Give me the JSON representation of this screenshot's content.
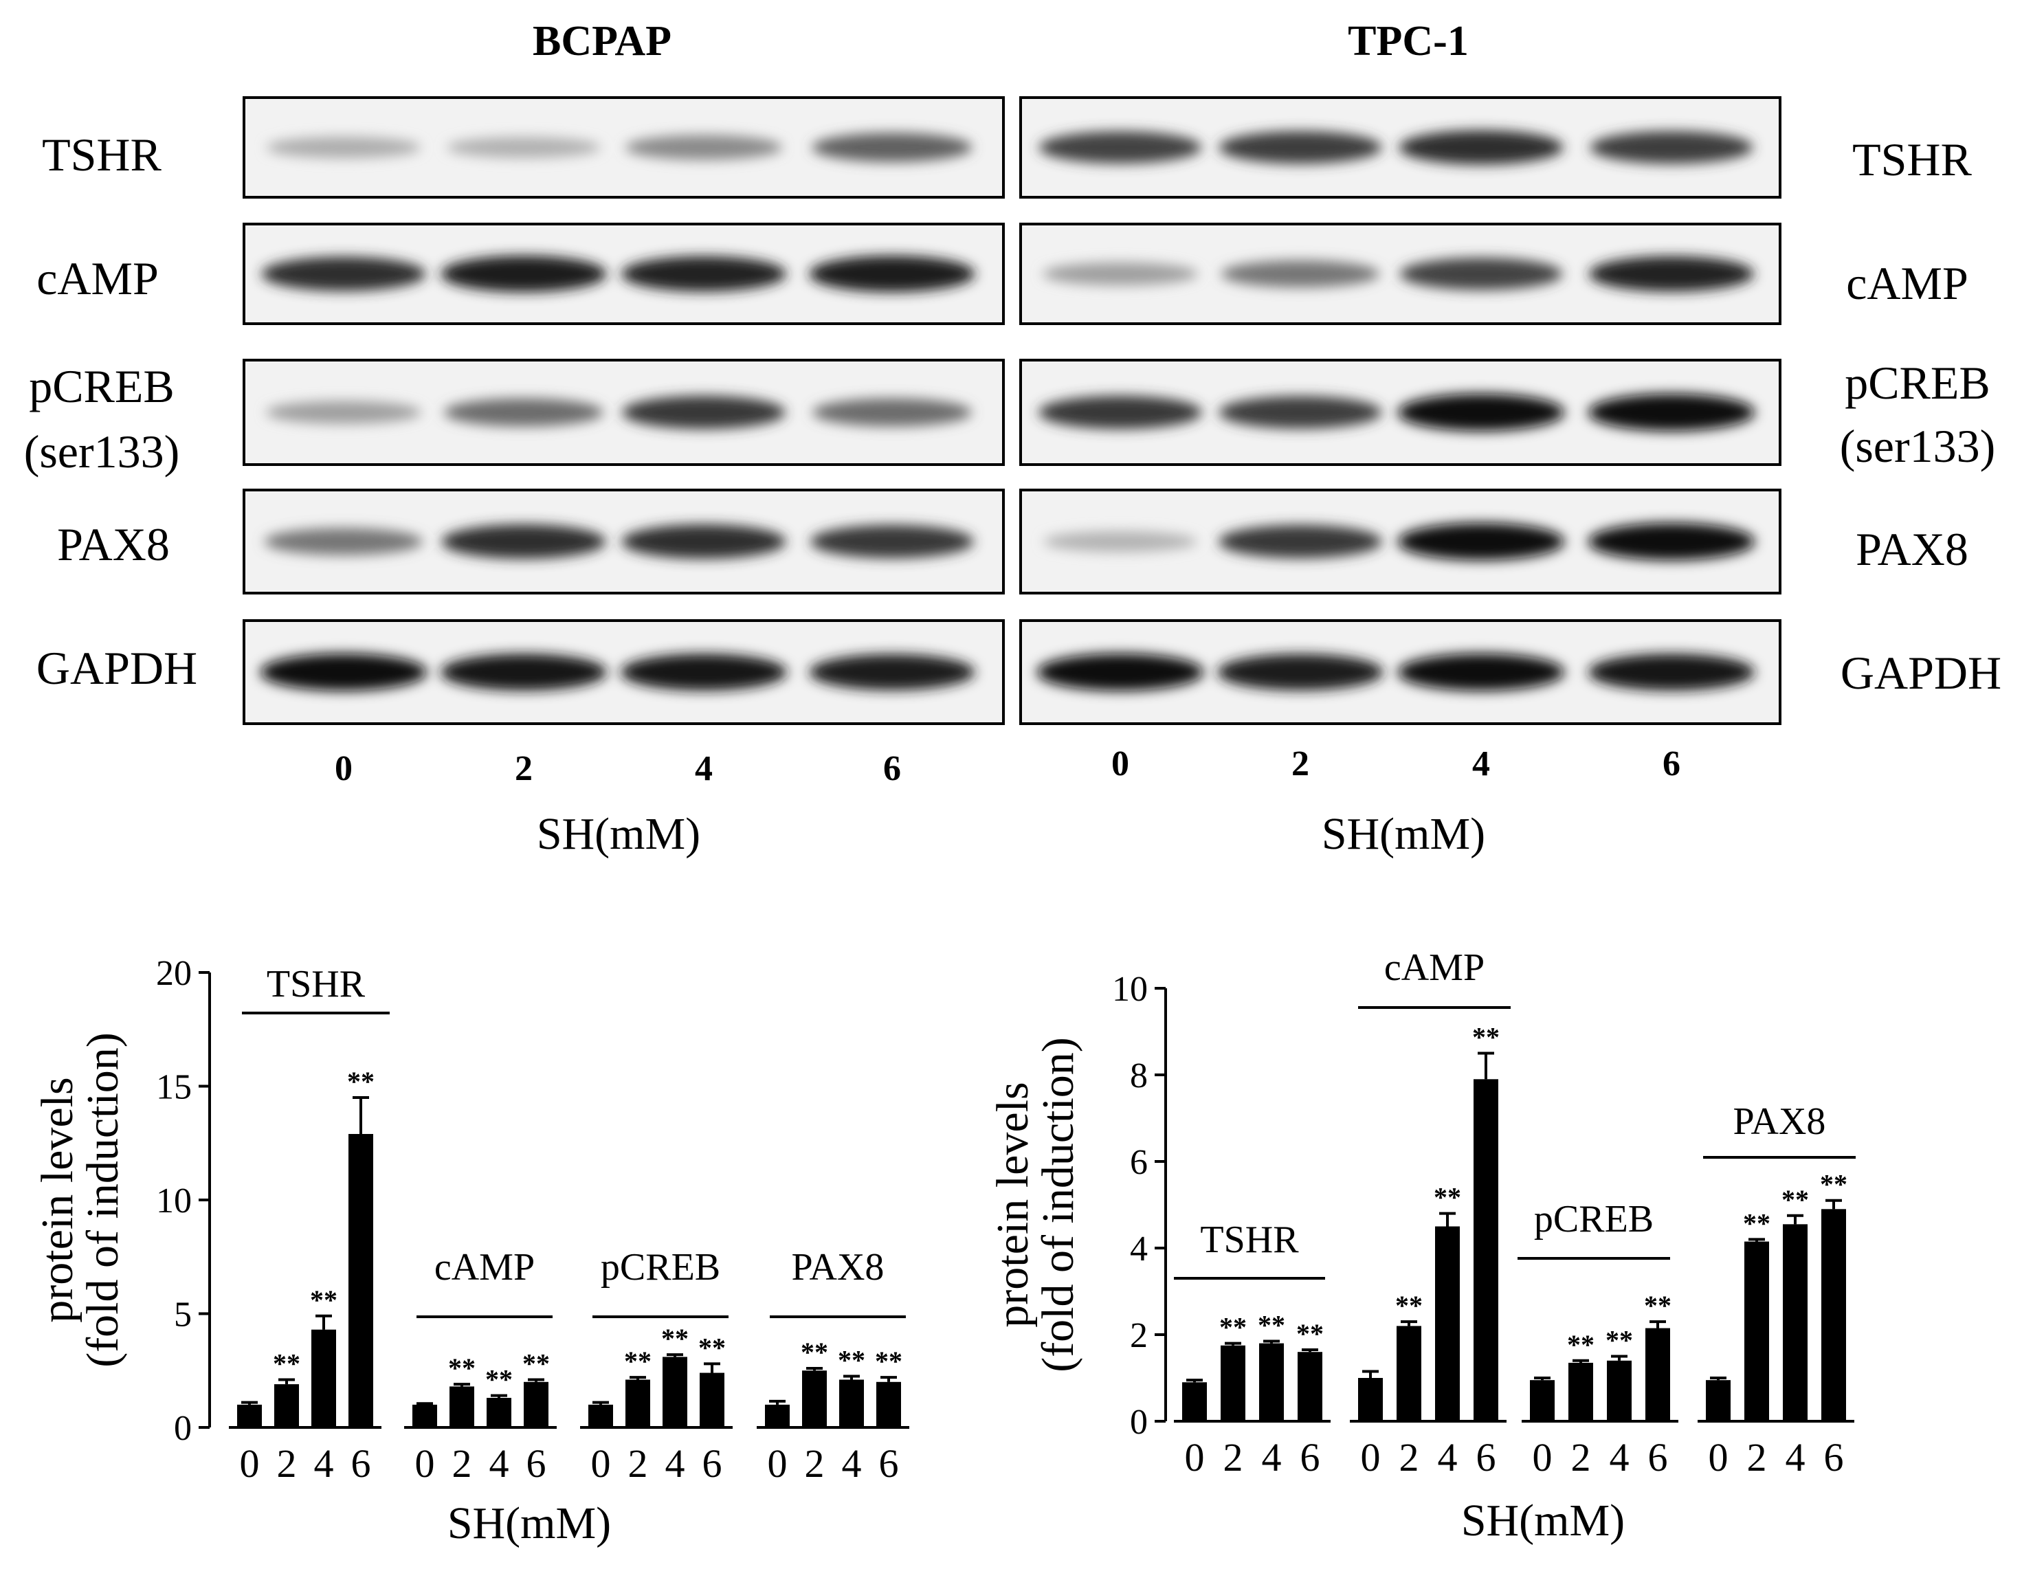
{
  "blots": {
    "panels": [
      {
        "title": "BCPAP",
        "lanes": [
          "0",
          "2",
          "4",
          "6"
        ],
        "xlabel": "SH(mM)"
      },
      {
        "title": "TPC-1",
        "lanes": [
          "0",
          "2",
          "4",
          "6"
        ],
        "xlabel": "SH(mM)"
      }
    ],
    "row_labels": [
      "TSHR",
      "cAMP",
      "pCREB",
      "(ser133)",
      "PAX8",
      "GAPDH"
    ],
    "band_intensity": [
      [
        [
          0.18,
          0.16,
          0.35,
          0.55
        ],
        [
          0.7,
          0.72,
          0.8,
          0.72
        ]
      ],
      [
        [
          0.8,
          0.9,
          0.85,
          0.9
        ],
        [
          0.25,
          0.45,
          0.7,
          0.85
        ]
      ],
      [
        [
          0.25,
          0.5,
          0.75,
          0.5
        ],
        [
          0.75,
          0.72,
          0.95,
          0.95
        ]
      ],
      [
        [
          0.45,
          0.8,
          0.8,
          0.75
        ],
        [
          0.15,
          0.75,
          0.95,
          0.95
        ]
      ],
      [
        [
          0.95,
          0.92,
          0.92,
          0.88
        ],
        [
          0.95,
          0.9,
          0.95,
          0.92
        ]
      ]
    ]
  },
  "chart_data": [
    {
      "type": "bar",
      "title": "",
      "xlabel": "SH(mM)",
      "ylabel": [
        "protein levels",
        "(fold of induction)"
      ],
      "ylim": [
        0,
        20
      ],
      "yticks": [
        "0",
        "5",
        "10",
        "15",
        "20"
      ],
      "x_tick_labels": [
        "0",
        "2",
        "4",
        "6"
      ],
      "groups": [
        {
          "name": "TSHR",
          "values": [
            1.0,
            1.9,
            4.3,
            12.9
          ],
          "errors": [
            0.1,
            0.2,
            0.6,
            1.6
          ],
          "sig": [
            "",
            "**",
            "**",
            "**"
          ]
        },
        {
          "name": "cAMP",
          "values": [
            1.0,
            1.8,
            1.3,
            2.0
          ],
          "errors": [
            0.05,
            0.1,
            0.1,
            0.1
          ],
          "sig": [
            "",
            "**",
            "**",
            "**"
          ]
        },
        {
          "name": "pCREB",
          "values": [
            1.0,
            2.1,
            3.1,
            2.4
          ],
          "errors": [
            0.1,
            0.1,
            0.1,
            0.4
          ],
          "sig": [
            "",
            "**",
            "**",
            "**"
          ]
        },
        {
          "name": "PAX8",
          "values": [
            1.0,
            2.5,
            2.1,
            2.0
          ],
          "errors": [
            0.15,
            0.1,
            0.15,
            0.2
          ],
          "sig": [
            "",
            "**",
            "**",
            "**"
          ]
        }
      ]
    },
    {
      "type": "bar",
      "title": "",
      "xlabel": "SH(mM)",
      "ylabel": [
        "protein levels",
        "(fold of induction)"
      ],
      "ylim": [
        0,
        10
      ],
      "yticks": [
        "0",
        "2",
        "4",
        "6",
        "8",
        "10"
      ],
      "x_tick_labels": [
        "0",
        "2",
        "4",
        "6"
      ],
      "groups": [
        {
          "name": "TSHR",
          "values": [
            0.9,
            1.75,
            1.8,
            1.6
          ],
          "errors": [
            0.05,
            0.05,
            0.05,
            0.05
          ],
          "sig": [
            "",
            "**",
            "**",
            "**"
          ]
        },
        {
          "name": "cAMP",
          "values": [
            1.0,
            2.2,
            4.5,
            7.9
          ],
          "errors": [
            0.15,
            0.1,
            0.3,
            0.6
          ],
          "sig": [
            "",
            "**",
            "**",
            "**"
          ]
        },
        {
          "name": "pCREB",
          "values": [
            0.95,
            1.35,
            1.4,
            2.15
          ],
          "errors": [
            0.05,
            0.05,
            0.1,
            0.15
          ],
          "sig": [
            "",
            "**",
            "**",
            "**"
          ]
        },
        {
          "name": "PAX8",
          "values": [
            0.95,
            4.15,
            4.55,
            4.9
          ],
          "errors": [
            0.05,
            0.05,
            0.2,
            0.2
          ],
          "sig": [
            "",
            "**",
            "**",
            "**"
          ]
        }
      ]
    }
  ]
}
